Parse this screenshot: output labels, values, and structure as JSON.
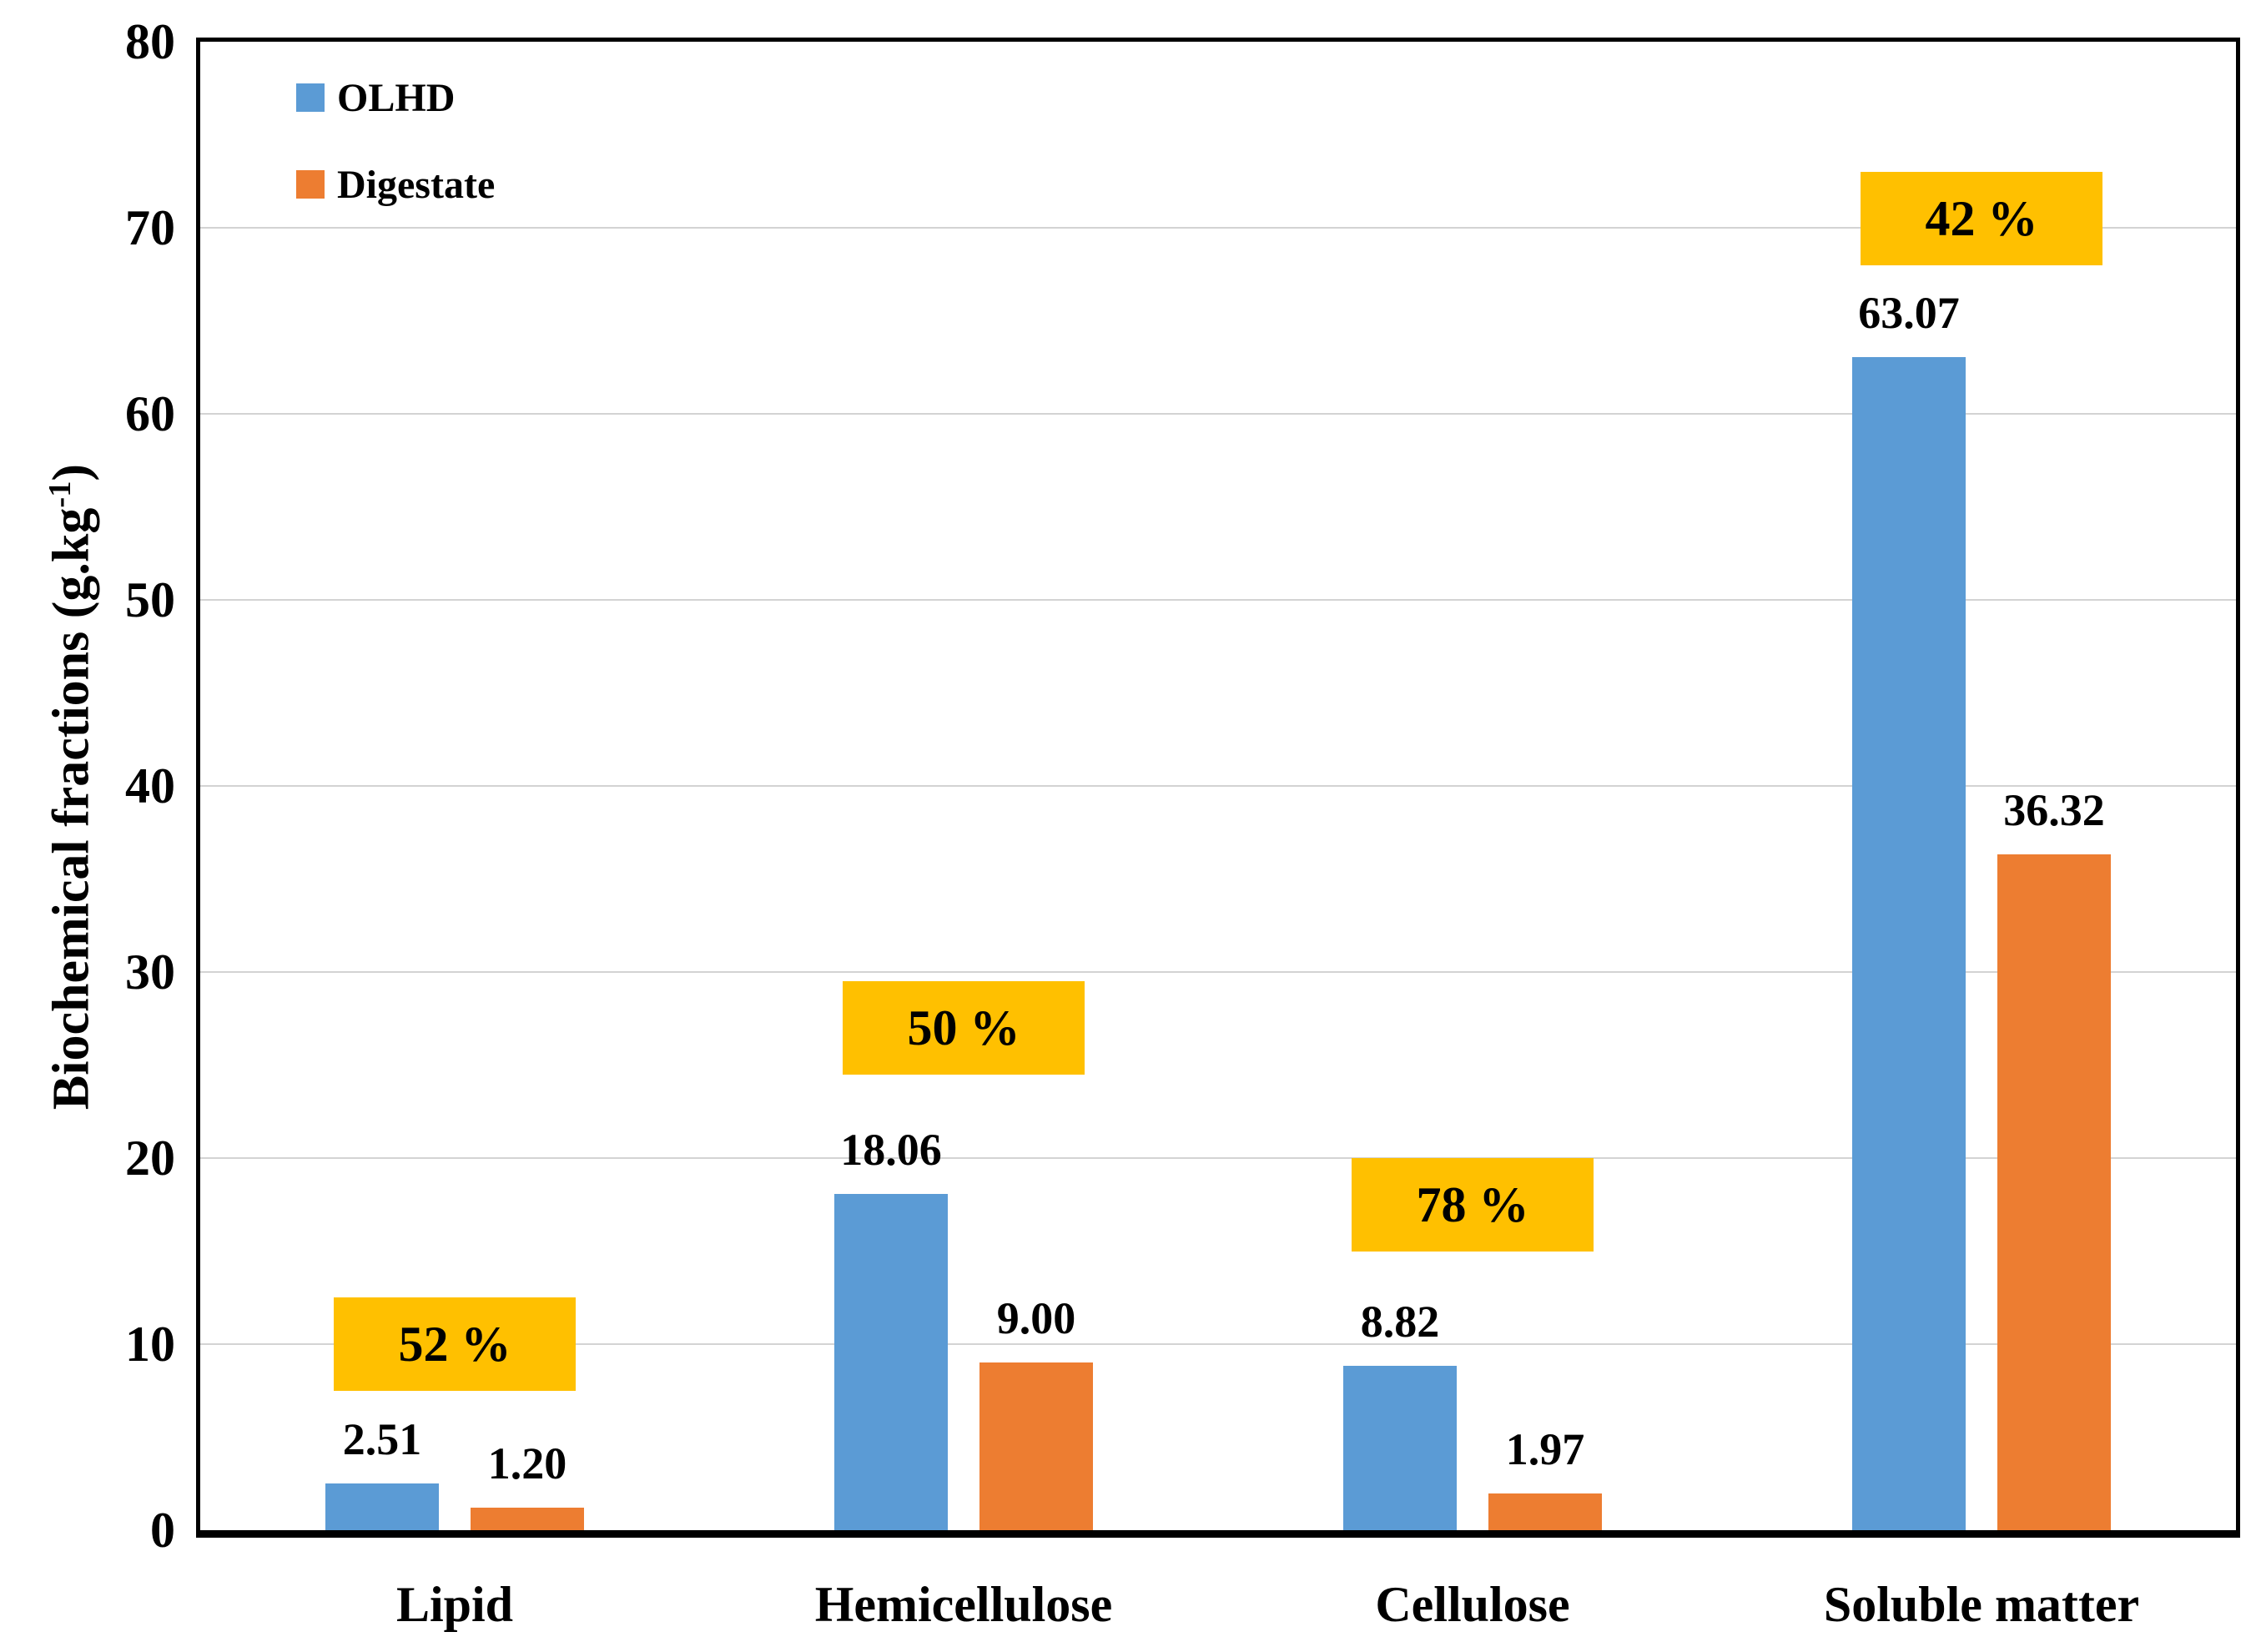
{
  "chart_data": {
    "type": "bar",
    "title": "",
    "xlabel": "",
    "ylabel": {
      "pre": "Biochemical fractions (g.kg",
      "sup": "-1",
      "post": ")"
    },
    "ylim": [
      0,
      80
    ],
    "ytick_step": 10,
    "yticks": [
      "0",
      "10",
      "20",
      "30",
      "40",
      "50",
      "60",
      "70",
      "80"
    ],
    "grid": true,
    "gridline_color": "#d3d3d3",
    "legend_position": "top-left-inside",
    "categories": [
      "Lipid",
      "Hemicellulose",
      "Cellulose",
      "Soluble matter"
    ],
    "series": [
      {
        "name": "OLHD",
        "color": "#5B9BD5",
        "values": [
          2.51,
          18.06,
          8.82,
          63.07
        ],
        "value_labels": [
          "2.51",
          "18.06",
          "8.82",
          "63.07"
        ]
      },
      {
        "name": "Digestate",
        "color": "#ED7D31",
        "values": [
          1.2,
          9.0,
          1.97,
          36.32
        ],
        "value_labels": [
          "1.20",
          "9.00",
          "1.97",
          "36.32"
        ]
      }
    ],
    "annotations": [
      {
        "label": "52 %",
        "category": "Lipid",
        "y_center": 10
      },
      {
        "label": "50 %",
        "category": "Hemicellulose",
        "y_center": 27
      },
      {
        "label": "78 %",
        "category": "Cellulose",
        "y_center": 17.5
      },
      {
        "label": "42 %",
        "category": "Soluble matter",
        "y_center": 70.5
      }
    ],
    "annotation_bg": "#FFC000",
    "annotation_text_color": "#000000"
  }
}
